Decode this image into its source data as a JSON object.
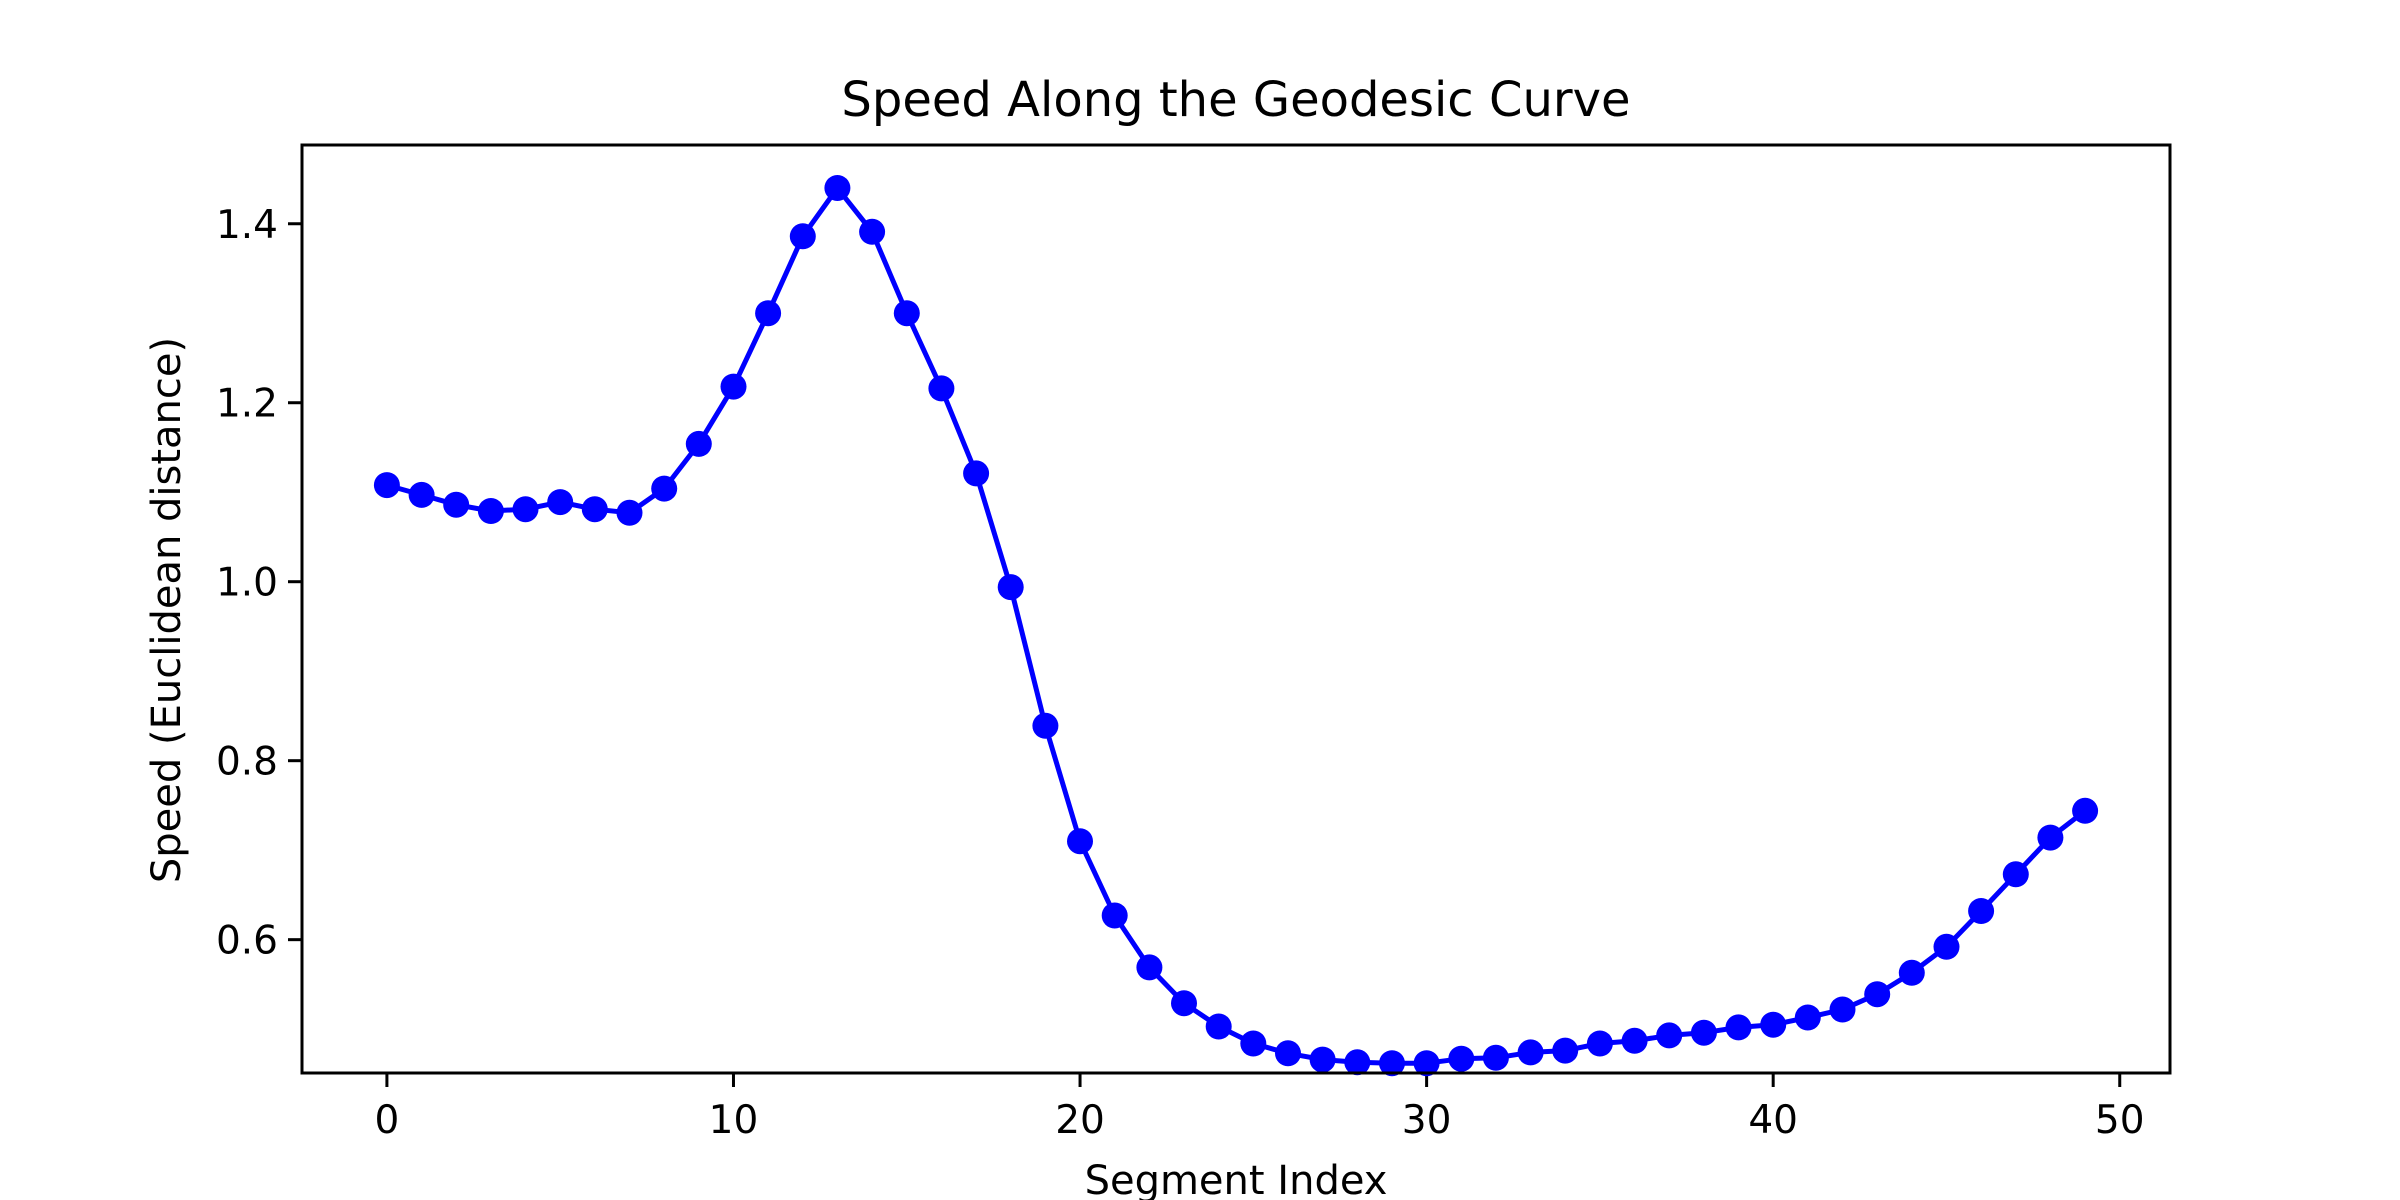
{
  "chart_data": {
    "type": "line",
    "title": "Speed Along the Geodesic Curve",
    "xlabel": "Segment Index",
    "ylabel": "Speed (Euclidean distance)",
    "xlim": [
      -2.45,
      51.45
    ],
    "ylim": [
      0.451,
      1.488
    ],
    "xticks": [
      0,
      10,
      20,
      30,
      40,
      50
    ],
    "yticks": [
      0.6,
      0.8,
      1.0,
      1.2,
      1.4
    ],
    "xtick_labels": [
      "0",
      "10",
      "20",
      "30",
      "40",
      "50"
    ],
    "ytick_labels": [
      "0.6",
      "0.8",
      "1.0",
      "1.2",
      "1.4"
    ],
    "grid": false,
    "legend": false,
    "line_color": "#0000ff",
    "marker": "circle",
    "series": [
      {
        "x": [
          0,
          1,
          2,
          3,
          4,
          5,
          6,
          7,
          8,
          9,
          10,
          11,
          12,
          13,
          14,
          15,
          16,
          17,
          18,
          19,
          20,
          21,
          22,
          23,
          24,
          25,
          26,
          27,
          28,
          29,
          30,
          31,
          32,
          33,
          34,
          35,
          36,
          37,
          38,
          39,
          40,
          41,
          42,
          43,
          44,
          45,
          46,
          47,
          48,
          49
        ],
        "values": [
          1.108,
          1.097,
          1.086,
          1.079,
          1.081,
          1.089,
          1.081,
          1.077,
          1.104,
          1.154,
          1.218,
          1.3,
          1.386,
          1.44,
          1.391,
          1.3,
          1.216,
          1.121,
          0.994,
          0.839,
          0.71,
          0.627,
          0.569,
          0.529,
          0.503,
          0.484,
          0.473,
          0.466,
          0.463,
          0.462,
          0.462,
          0.467,
          0.468,
          0.474,
          0.476,
          0.484,
          0.487,
          0.493,
          0.496,
          0.502,
          0.505,
          0.513,
          0.522,
          0.539,
          0.563,
          0.592,
          0.632,
          0.673,
          0.714,
          0.744
        ]
      }
    ]
  }
}
